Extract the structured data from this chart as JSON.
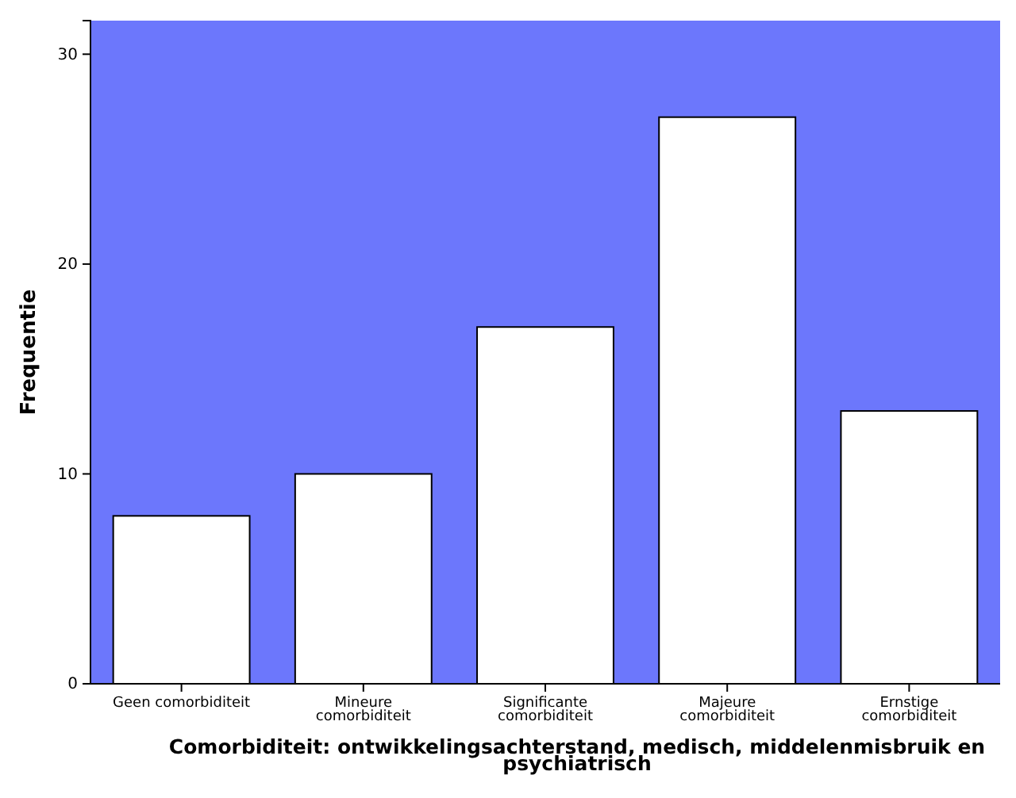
{
  "chart_data": {
    "type": "bar",
    "categories": [
      "Geen comorbiditeit",
      "Mineure comorbiditeit",
      "Significante comorbiditeit",
      "Majeure comorbiditeit",
      "Ernstige comorbiditeit"
    ],
    "values": [
      8,
      10,
      17,
      27,
      13
    ],
    "color": "#ffffff",
    "xlabel": "Comorbiditeit: ontwikkelingsachterstand, medisch, middelenmisbruik en psychiatrisch",
    "ylabel": "Frequentie",
    "ylim": [
      0,
      31.6
    ],
    "yticks": [
      0,
      10,
      20,
      30
    ],
    "grid": false
  }
}
